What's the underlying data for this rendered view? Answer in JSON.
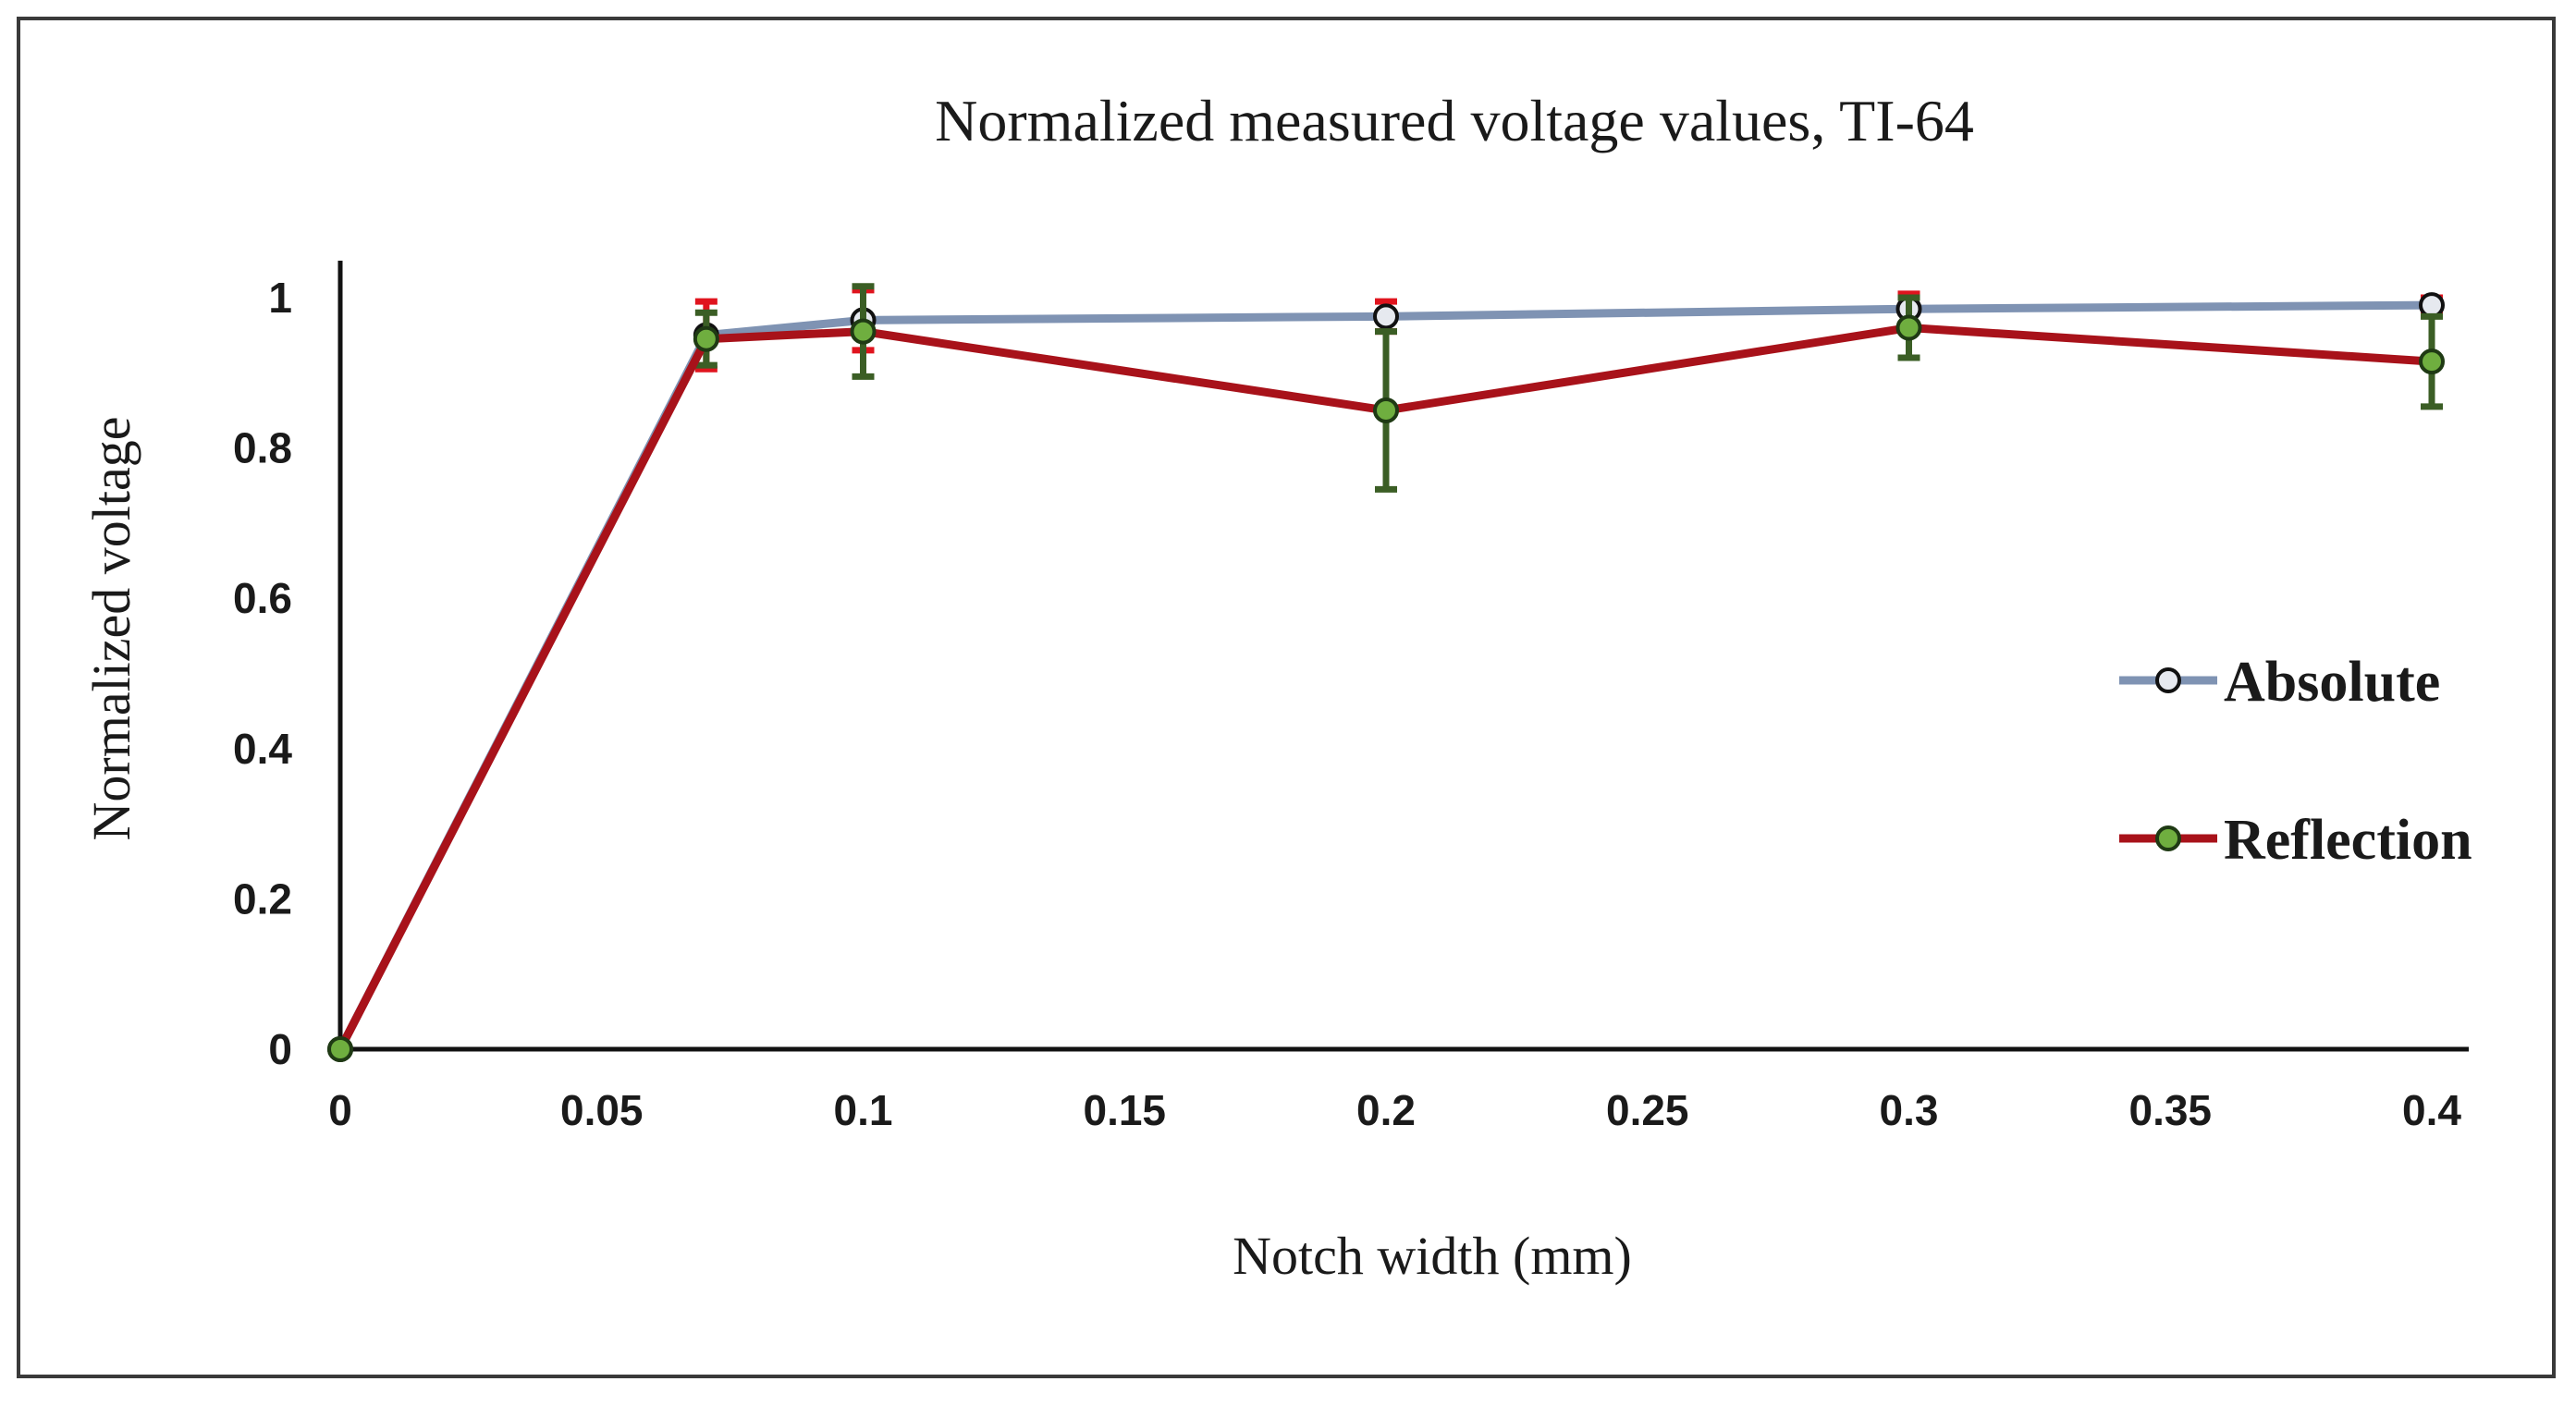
{
  "chart_data": {
    "type": "line",
    "title": "Normalized measured voltage values, TI-64",
    "xlabel": "Notch width (mm)",
    "ylabel": "Normalized voltage",
    "xlim": [
      0,
      0.4
    ],
    "ylim": [
      0,
      1.0
    ],
    "x_ticks": [
      0,
      0.05,
      0.1,
      0.15,
      0.2,
      0.25,
      0.3,
      0.35,
      0.4
    ],
    "x_tick_labels": [
      "0",
      "0.05",
      "0.1",
      "0.15",
      "0.2",
      "0.25",
      "0.3",
      "0.35",
      "0.4"
    ],
    "y_ticks": [
      0,
      0.2,
      0.4,
      0.6,
      0.8,
      1.0
    ],
    "y_tick_labels": [
      "0",
      "0.2",
      "0.4",
      "0.6",
      "0.8",
      "1"
    ],
    "grid": false,
    "legend_position": "right",
    "series": [
      {
        "name": "Absolute",
        "line_color": "#7f93b3",
        "marker_fill": "#e6e9ef",
        "marker_stroke": "#111111",
        "error_color": "#e0141e",
        "x": [
          0,
          0.07,
          0.1,
          0.2,
          0.3,
          0.4
        ],
        "y": [
          0,
          0.95,
          0.97,
          0.975,
          0.985,
          0.99
        ],
        "err": [
          0,
          0.045,
          0.04,
          0.02,
          0.02,
          0.01
        ]
      },
      {
        "name": "Reflection",
        "line_color": "#a8121a",
        "marker_fill": "#6fae3f",
        "marker_stroke": "#1f3a14",
        "error_color": "#3b5e25",
        "x": [
          0,
          0.07,
          0.1,
          0.2,
          0.3,
          0.4
        ],
        "y": [
          0,
          0.945,
          0.955,
          0.85,
          0.96,
          0.915
        ],
        "err": [
          0,
          0.035,
          0.06,
          0.105,
          0.04,
          0.06
        ]
      }
    ]
  }
}
